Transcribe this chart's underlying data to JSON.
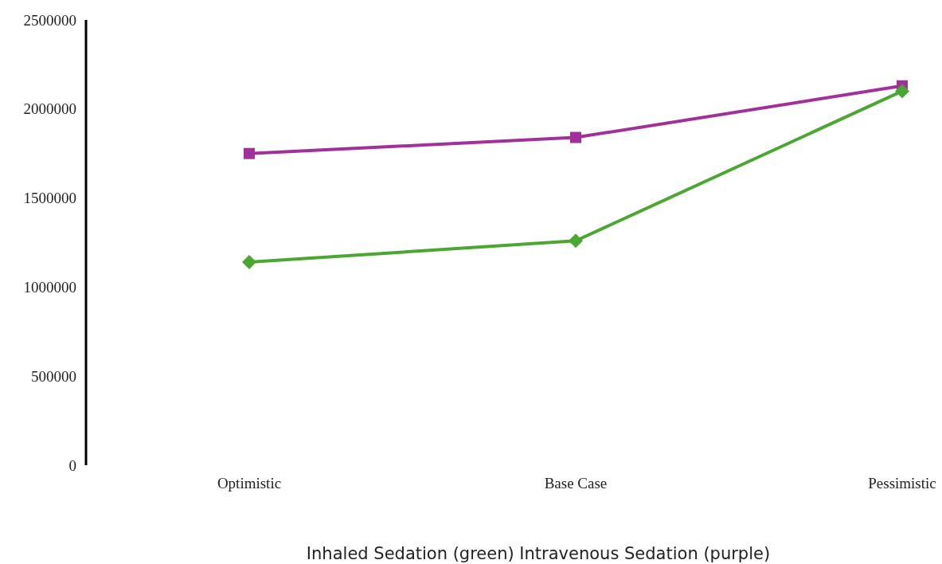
{
  "chart_data": {
    "type": "line",
    "xlabel": "Inhaled Sedation (green) Intravenous Sedation (purple)",
    "categories": [
      "Optimistic",
      "Base Case",
      "Pessimistic"
    ],
    "series": [
      {
        "color": "#4aa832",
        "marker": "diamond",
        "values": [
          1140000,
          1260000,
          2100000
        ]
      },
      {
        "color": "#a0309a",
        "marker": "square",
        "values": [
          1750000,
          1840000,
          2130000
        ]
      }
    ],
    "ylim": [
      0,
      2500000
    ],
    "yticks": [
      0,
      500000,
      1000000,
      1500000,
      2000000,
      2500000
    ],
    "grid": false
  }
}
